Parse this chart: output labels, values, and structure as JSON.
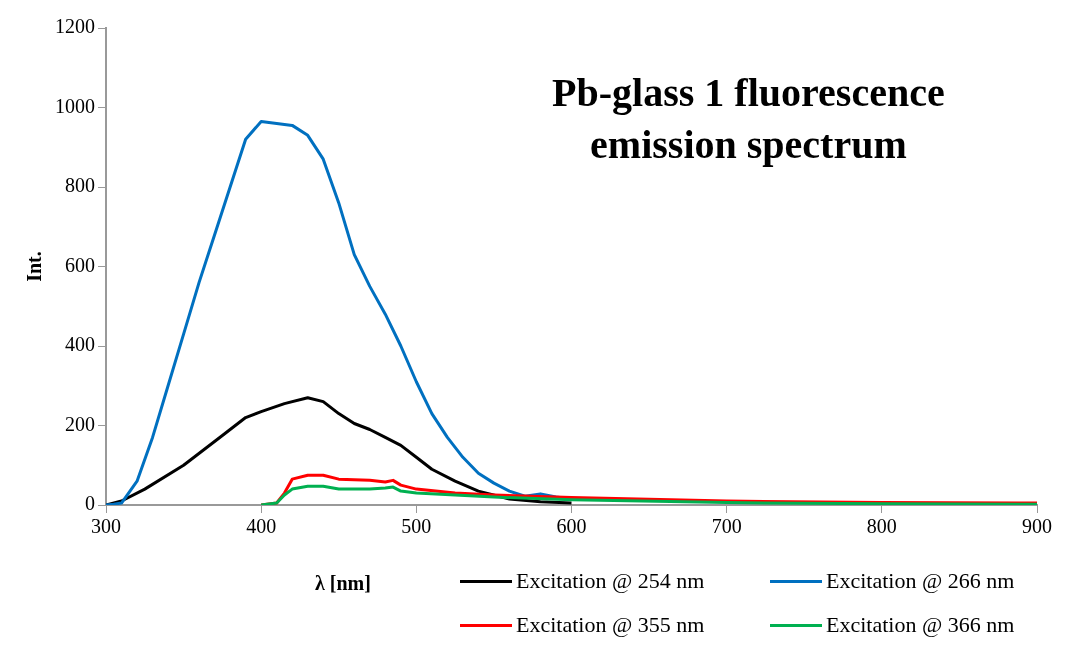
{
  "chart_data": {
    "type": "line",
    "title": "Pb-glass 1 fluorescence emission spectrum",
    "xlabel": "λ [nm]",
    "ylabel": "Int.",
    "xlim": [
      300,
      900
    ],
    "xticks": [
      300,
      400,
      500,
      600,
      700,
      800,
      900
    ],
    "ylim": [
      0,
      1200
    ],
    "yticks": [
      0,
      200,
      400,
      600,
      800,
      {
        "value": 1000,
        "label": "1000"
      },
      {
        "value": 1200,
        "label": "1200"
      }
    ],
    "grid": false,
    "legend": "bottom right",
    "marker": "none",
    "line_style": "solid",
    "series": [
      {
        "name": "Excitation @ 254 nm",
        "color": "#000000",
        "x": [
          300,
          310,
          325,
          350,
          375,
          390,
          400,
          415,
          430,
          440,
          450,
          460,
          470,
          480,
          490,
          500,
          510,
          525,
          540,
          560,
          580,
          600
        ],
        "values": [
          0,
          10,
          40,
          100,
          175,
          220,
          235,
          255,
          270,
          260,
          230,
          205,
          190,
          170,
          150,
          120,
          90,
          60,
          35,
          15,
          8,
          5
        ]
      },
      {
        "name": "Excitation @ 266 nm",
        "color": "#0070c0",
        "x": [
          300,
          305,
          310,
          320,
          330,
          340,
          350,
          360,
          370,
          380,
          390,
          400,
          410,
          420,
          430,
          440,
          450,
          460,
          470,
          480,
          490,
          500,
          510,
          520,
          530,
          540,
          550,
          560,
          570,
          580,
          590,
          600
        ],
        "values": [
          0,
          2,
          5,
          60,
          170,
          300,
          430,
          560,
          680,
          800,
          920,
          965,
          960,
          955,
          930,
          870,
          760,
          630,
          550,
          480,
          400,
          310,
          230,
          170,
          120,
          80,
          55,
          35,
          22,
          28,
          20,
          15
        ]
      },
      {
        "name": "Excitation @ 355 nm",
        "color": "#ff0000",
        "x": [
          400,
          410,
          415,
          420,
          430,
          440,
          450,
          470,
          480,
          485,
          490,
          500,
          525,
          550,
          600,
          700,
          800,
          900
        ],
        "values": [
          0,
          5,
          30,
          65,
          75,
          75,
          65,
          62,
          58,
          62,
          50,
          40,
          30,
          25,
          19,
          10,
          6,
          5
        ]
      },
      {
        "name": "Excitation @ 366 nm",
        "color": "#00b050",
        "x": [
          400,
          410,
          415,
          420,
          430,
          440,
          450,
          470,
          480,
          485,
          490,
          500,
          525,
          550,
          600,
          700,
          800,
          900
        ],
        "values": [
          0,
          5,
          25,
          40,
          47,
          47,
          40,
          40,
          43,
          45,
          35,
          30,
          25,
          20,
          13,
          6,
          3,
          2
        ]
      }
    ]
  }
}
